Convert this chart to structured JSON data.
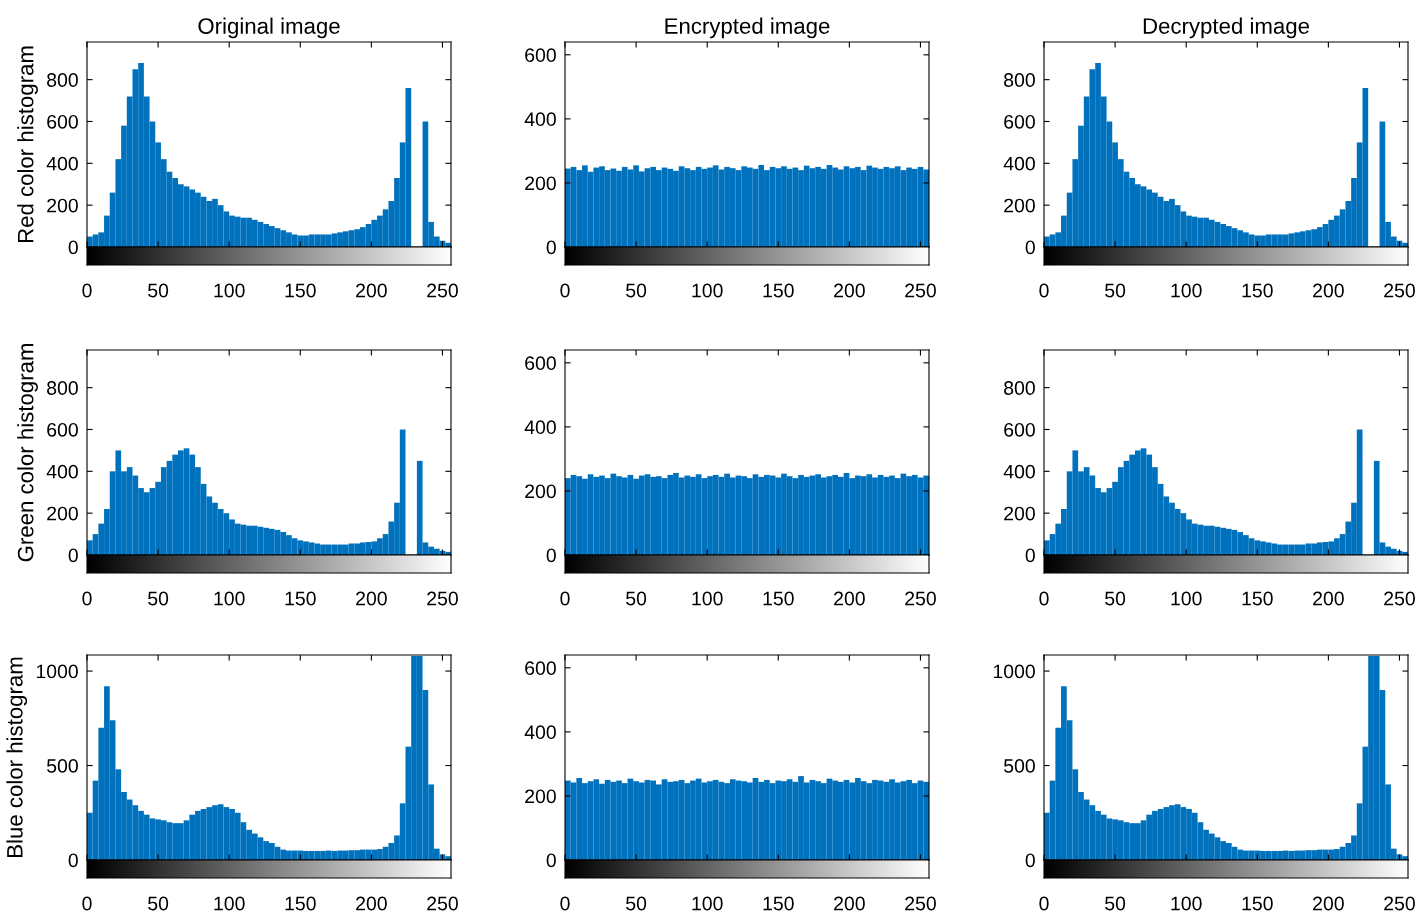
{
  "chart_data": [
    {
      "type": "histogram",
      "title": "Original image",
      "ylabel": "Red color histogram",
      "color": "#0072bd",
      "xlim": [
        0,
        256
      ],
      "xticks": [
        0,
        50,
        100,
        150,
        200,
        250
      ],
      "ylim": [
        0,
        980
      ],
      "yticks": [
        0,
        200,
        400,
        600,
        800
      ],
      "bins": [
        0,
        4,
        8,
        12,
        16,
        20,
        24,
        28,
        32,
        36,
        40,
        44,
        48,
        52,
        56,
        60,
        64,
        68,
        72,
        76,
        80,
        84,
        88,
        92,
        96,
        100,
        104,
        108,
        112,
        116,
        120,
        124,
        128,
        132,
        136,
        140,
        144,
        148,
        152,
        156,
        160,
        164,
        168,
        172,
        176,
        180,
        184,
        188,
        192,
        196,
        200,
        204,
        208,
        212,
        216,
        220,
        224,
        228,
        232,
        236,
        240,
        244,
        248,
        252,
        256
      ],
      "values": [
        50,
        60,
        70,
        150,
        260,
        420,
        580,
        720,
        850,
        880,
        720,
        600,
        500,
        420,
        360,
        330,
        300,
        290,
        275,
        260,
        240,
        220,
        230,
        200,
        170,
        150,
        145,
        140,
        140,
        130,
        120,
        110,
        100,
        90,
        80,
        70,
        60,
        55,
        55,
        60,
        60,
        60,
        60,
        65,
        70,
        75,
        80,
        85,
        95,
        110,
        130,
        150,
        180,
        220,
        330,
        500,
        760,
        null,
        null,
        600,
        120,
        50,
        30,
        20
      ]
    },
    {
      "type": "histogram",
      "title": "Encrypted image",
      "color": "#0072bd",
      "xlim": [
        0,
        256
      ],
      "xticks": [
        0,
        50,
        100,
        150,
        200,
        250
      ],
      "ylim": [
        0,
        640
      ],
      "yticks": [
        0,
        200,
        400,
        600
      ],
      "bins": [
        0,
        4,
        8,
        12,
        16,
        20,
        24,
        28,
        32,
        36,
        40,
        44,
        48,
        52,
        56,
        60,
        64,
        68,
        72,
        76,
        80,
        84,
        88,
        92,
        96,
        100,
        104,
        108,
        112,
        116,
        120,
        124,
        128,
        132,
        136,
        140,
        144,
        148,
        152,
        156,
        160,
        164,
        168,
        172,
        176,
        180,
        184,
        188,
        192,
        196,
        200,
        204,
        208,
        212,
        216,
        220,
        224,
        228,
        232,
        236,
        240,
        244,
        248,
        252,
        256
      ],
      "values": [
        245,
        250,
        240,
        255,
        235,
        248,
        252,
        240,
        245,
        238,
        250,
        242,
        255,
        236,
        246,
        250,
        240,
        248,
        244,
        238,
        252,
        246,
        240,
        250,
        244,
        248,
        255,
        242,
        250,
        246,
        240,
        252,
        248,
        244,
        256,
        240,
        250,
        246,
        252,
        244,
        248,
        240,
        254,
        246,
        250,
        244,
        256,
        248,
        242,
        252,
        246,
        250,
        240,
        254,
        248,
        244,
        250,
        246,
        252,
        240,
        248,
        244,
        250,
        242
      ]
    },
    {
      "type": "histogram",
      "title": "Decrypted image",
      "color": "#0072bd",
      "xlim": [
        0,
        256
      ],
      "xticks": [
        0,
        50,
        100,
        150,
        200,
        250
      ],
      "ylim": [
        0,
        980
      ],
      "yticks": [
        0,
        200,
        400,
        600,
        800
      ],
      "bins": [
        0,
        4,
        8,
        12,
        16,
        20,
        24,
        28,
        32,
        36,
        40,
        44,
        48,
        52,
        56,
        60,
        64,
        68,
        72,
        76,
        80,
        84,
        88,
        92,
        96,
        100,
        104,
        108,
        112,
        116,
        120,
        124,
        128,
        132,
        136,
        140,
        144,
        148,
        152,
        156,
        160,
        164,
        168,
        172,
        176,
        180,
        184,
        188,
        192,
        196,
        200,
        204,
        208,
        212,
        216,
        220,
        224,
        228,
        232,
        236,
        240,
        244,
        248,
        252,
        256
      ],
      "values": [
        50,
        60,
        70,
        150,
        260,
        420,
        580,
        720,
        850,
        880,
        720,
        600,
        500,
        420,
        360,
        330,
        300,
        290,
        275,
        260,
        240,
        220,
        230,
        200,
        170,
        150,
        145,
        140,
        140,
        130,
        120,
        110,
        100,
        90,
        80,
        70,
        60,
        55,
        55,
        60,
        60,
        60,
        60,
        65,
        70,
        75,
        80,
        85,
        95,
        110,
        130,
        150,
        180,
        220,
        330,
        500,
        760,
        null,
        null,
        600,
        120,
        50,
        30,
        20
      ]
    },
    {
      "type": "histogram",
      "ylabel": "Green color histogram",
      "color": "#0072bd",
      "xlim": [
        0,
        256
      ],
      "xticks": [
        0,
        50,
        100,
        150,
        200,
        250
      ],
      "ylim": [
        0,
        980
      ],
      "yticks": [
        0,
        200,
        400,
        600,
        800
      ],
      "bins": [
        0,
        4,
        8,
        12,
        16,
        20,
        24,
        28,
        32,
        36,
        40,
        44,
        48,
        52,
        56,
        60,
        64,
        68,
        72,
        76,
        80,
        84,
        88,
        92,
        96,
        100,
        104,
        108,
        112,
        116,
        120,
        124,
        128,
        132,
        136,
        140,
        144,
        148,
        152,
        156,
        160,
        164,
        168,
        172,
        176,
        180,
        184,
        188,
        192,
        196,
        200,
        204,
        208,
        212,
        216,
        220,
        224,
        228,
        232,
        236,
        240,
        244,
        248,
        252,
        256
      ],
      "values": [
        70,
        100,
        150,
        220,
        400,
        500,
        400,
        420,
        380,
        320,
        300,
        320,
        350,
        420,
        450,
        480,
        500,
        510,
        480,
        420,
        340,
        280,
        250,
        220,
        200,
        170,
        150,
        145,
        140,
        140,
        135,
        130,
        125,
        120,
        110,
        95,
        80,
        70,
        65,
        60,
        55,
        50,
        50,
        50,
        50,
        50,
        55,
        55,
        60,
        62,
        65,
        80,
        100,
        160,
        250,
        600,
        null,
        null,
        450,
        60,
        40,
        30,
        20,
        15
      ]
    },
    {
      "type": "histogram",
      "color": "#0072bd",
      "xlim": [
        0,
        256
      ],
      "xticks": [
        0,
        50,
        100,
        150,
        200,
        250
      ],
      "ylim": [
        0,
        640
      ],
      "yticks": [
        0,
        200,
        400,
        600
      ],
      "bins": [
        0,
        4,
        8,
        12,
        16,
        20,
        24,
        28,
        32,
        36,
        40,
        44,
        48,
        52,
        56,
        60,
        64,
        68,
        72,
        76,
        80,
        84,
        88,
        92,
        96,
        100,
        104,
        108,
        112,
        116,
        120,
        124,
        128,
        132,
        136,
        140,
        144,
        148,
        152,
        156,
        160,
        164,
        168,
        172,
        176,
        180,
        184,
        188,
        192,
        196,
        200,
        204,
        208,
        212,
        216,
        220,
        224,
        228,
        232,
        236,
        240,
        244,
        248,
        252,
        256
      ],
      "values": [
        240,
        250,
        246,
        238,
        252,
        244,
        248,
        240,
        254,
        246,
        242,
        250,
        238,
        248,
        252,
        244,
        246,
        240,
        250,
        256,
        242,
        248,
        244,
        252,
        240,
        246,
        250,
        244,
        254,
        242,
        248,
        246,
        240,
        252,
        244,
        250,
        248,
        242,
        254,
        246,
        240,
        250,
        244,
        248,
        252,
        242,
        246,
        250,
        244,
        256,
        240,
        248,
        246,
        252,
        242,
        250,
        244,
        248,
        240,
        254,
        246,
        250,
        242,
        248
      ]
    },
    {
      "type": "histogram",
      "color": "#0072bd",
      "xlim": [
        0,
        256
      ],
      "xticks": [
        0,
        50,
        100,
        150,
        200,
        250
      ],
      "ylim": [
        0,
        980
      ],
      "yticks": [
        0,
        200,
        400,
        600,
        800
      ],
      "bins": [
        0,
        4,
        8,
        12,
        16,
        20,
        24,
        28,
        32,
        36,
        40,
        44,
        48,
        52,
        56,
        60,
        64,
        68,
        72,
        76,
        80,
        84,
        88,
        92,
        96,
        100,
        104,
        108,
        112,
        116,
        120,
        124,
        128,
        132,
        136,
        140,
        144,
        148,
        152,
        156,
        160,
        164,
        168,
        172,
        176,
        180,
        184,
        188,
        192,
        196,
        200,
        204,
        208,
        212,
        216,
        220,
        224,
        228,
        232,
        236,
        240,
        244,
        248,
        252,
        256
      ],
      "values": [
        70,
        100,
        150,
        220,
        400,
        500,
        400,
        420,
        380,
        320,
        300,
        320,
        350,
        420,
        450,
        480,
        500,
        510,
        480,
        420,
        340,
        280,
        250,
        220,
        200,
        170,
        150,
        145,
        140,
        140,
        135,
        130,
        125,
        120,
        110,
        95,
        80,
        70,
        65,
        60,
        55,
        50,
        50,
        50,
        50,
        50,
        55,
        55,
        60,
        62,
        65,
        80,
        100,
        160,
        250,
        600,
        null,
        null,
        450,
        60,
        40,
        30,
        20,
        15
      ]
    },
    {
      "type": "histogram",
      "ylabel": "Blue color histogram",
      "color": "#0072bd",
      "xlim": [
        0,
        256
      ],
      "xticks": [
        0,
        50,
        100,
        150,
        200,
        250
      ],
      "ylim": [
        0,
        1085
      ],
      "yticks": [
        0,
        500,
        1000
      ],
      "bins": [
        0,
        4,
        8,
        12,
        16,
        20,
        24,
        28,
        32,
        36,
        40,
        44,
        48,
        52,
        56,
        60,
        64,
        68,
        72,
        76,
        80,
        84,
        88,
        92,
        96,
        100,
        104,
        108,
        112,
        116,
        120,
        124,
        128,
        132,
        136,
        140,
        144,
        148,
        152,
        156,
        160,
        164,
        168,
        172,
        176,
        180,
        184,
        188,
        192,
        196,
        200,
        204,
        208,
        212,
        216,
        220,
        224,
        228,
        232,
        236,
        240,
        244,
        248,
        252,
        256
      ],
      "values": [
        250,
        420,
        700,
        920,
        740,
        480,
        360,
        320,
        290,
        260,
        240,
        220,
        215,
        210,
        200,
        195,
        195,
        210,
        240,
        260,
        270,
        280,
        290,
        295,
        280,
        270,
        250,
        200,
        160,
        140,
        120,
        100,
        90,
        70,
        55,
        50,
        50,
        50,
        48,
        48,
        48,
        48,
        50,
        48,
        50,
        50,
        52,
        52,
        55,
        55,
        55,
        58,
        70,
        90,
        130,
        300,
        600,
        1080,
        1080,
        900,
        400,
        60,
        30,
        20
      ]
    },
    {
      "type": "histogram",
      "color": "#0072bd",
      "xlim": [
        0,
        256
      ],
      "xticks": [
        0,
        50,
        100,
        150,
        200,
        250
      ],
      "ylim": [
        0,
        640
      ],
      "yticks": [
        0,
        200,
        400,
        600
      ],
      "bins": [
        0,
        4,
        8,
        12,
        16,
        20,
        24,
        28,
        32,
        36,
        40,
        44,
        48,
        52,
        56,
        60,
        64,
        68,
        72,
        76,
        80,
        84,
        88,
        92,
        96,
        100,
        104,
        108,
        112,
        116,
        120,
        124,
        128,
        132,
        136,
        140,
        144,
        148,
        152,
        156,
        160,
        164,
        168,
        172,
        176,
        180,
        184,
        188,
        192,
        196,
        200,
        204,
        208,
        212,
        216,
        220,
        224,
        228,
        232,
        236,
        240,
        244,
        248,
        252,
        256
      ],
      "values": [
        248,
        242,
        256,
        240,
        246,
        252,
        238,
        250,
        244,
        248,
        240,
        254,
        246,
        242,
        250,
        248,
        236,
        252,
        244,
        246,
        250,
        240,
        248,
        254,
        242,
        246,
        250,
        244,
        240,
        252,
        248,
        246,
        242,
        256,
        244,
        250,
        240,
        248,
        246,
        252,
        244,
        262,
        242,
        250,
        246,
        240,
        254,
        248,
        244,
        250,
        242,
        256,
        246,
        240,
        250,
        248,
        244,
        252,
        242,
        246,
        250,
        240,
        248,
        244
      ]
    },
    {
      "type": "histogram",
      "color": "#0072bd",
      "xlim": [
        0,
        256
      ],
      "xticks": [
        0,
        50,
        100,
        150,
        200,
        250
      ],
      "ylim": [
        0,
        1085
      ],
      "yticks": [
        0,
        500,
        1000
      ],
      "bins": [
        0,
        4,
        8,
        12,
        16,
        20,
        24,
        28,
        32,
        36,
        40,
        44,
        48,
        52,
        56,
        60,
        64,
        68,
        72,
        76,
        80,
        84,
        88,
        92,
        96,
        100,
        104,
        108,
        112,
        116,
        120,
        124,
        128,
        132,
        136,
        140,
        144,
        148,
        152,
        156,
        160,
        164,
        168,
        172,
        176,
        180,
        184,
        188,
        192,
        196,
        200,
        204,
        208,
        212,
        216,
        220,
        224,
        228,
        232,
        236,
        240,
        244,
        248,
        252,
        256
      ],
      "values": [
        250,
        420,
        700,
        920,
        740,
        480,
        360,
        320,
        290,
        260,
        240,
        220,
        215,
        210,
        200,
        195,
        195,
        210,
        240,
        260,
        270,
        280,
        290,
        295,
        280,
        270,
        250,
        200,
        160,
        140,
        120,
        100,
        90,
        70,
        55,
        50,
        50,
        50,
        48,
        48,
        48,
        48,
        50,
        48,
        50,
        50,
        52,
        52,
        55,
        55,
        55,
        58,
        70,
        90,
        130,
        300,
        600,
        1080,
        1080,
        900,
        400,
        60,
        30,
        20
      ]
    }
  ]
}
